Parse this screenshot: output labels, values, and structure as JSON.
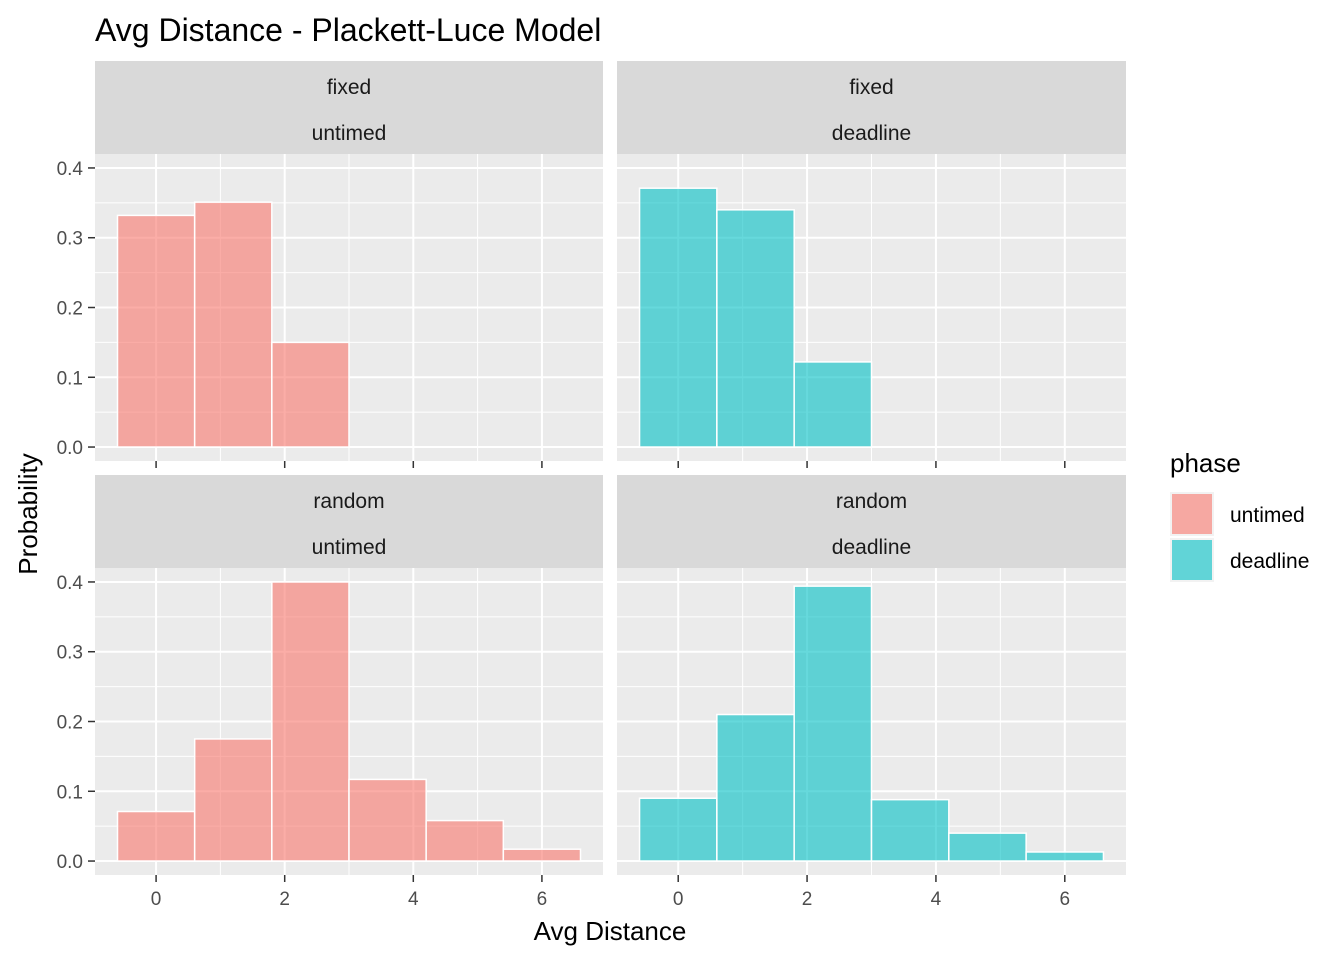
{
  "chart_data": {
    "type": "bar",
    "title": "Avg Distance - Plackett-Luce Model",
    "xlabel": "Avg Distance",
    "ylabel": "Probability",
    "xlim": [
      -0.95,
      6.95
    ],
    "ylim": [
      -0.02,
      0.42
    ],
    "x_ticks": [
      0,
      2,
      4,
      6
    ],
    "y_ticks": [
      0.0,
      0.1,
      0.2,
      0.3,
      0.4
    ],
    "y_tick_labels": [
      "0.0",
      "0.1",
      "0.2",
      "0.3",
      "0.4"
    ],
    "bin_edges": [
      -0.6,
      0.6,
      1.8,
      3.0,
      4.2,
      5.4,
      6.6
    ],
    "bin_centers": [
      0,
      1.2,
      2.4,
      3.6,
      4.8,
      6.0
    ],
    "grid": true,
    "legend": {
      "title": "phase",
      "position": "right",
      "entries": [
        {
          "label": "untimed",
          "color": "#F8766D"
        },
        {
          "label": "deadline",
          "color": "#00BFC4"
        }
      ]
    },
    "panels": [
      {
        "row": 0,
        "col": 0,
        "strip": [
          "fixed",
          "untimed"
        ],
        "phase": "untimed",
        "values": [
          0.332,
          0.351,
          0.15,
          0,
          0,
          0
        ]
      },
      {
        "row": 0,
        "col": 1,
        "strip": [
          "fixed",
          "deadline"
        ],
        "phase": "deadline",
        "values": [
          0.371,
          0.34,
          0.122,
          0,
          0,
          0
        ]
      },
      {
        "row": 1,
        "col": 0,
        "strip": [
          "random",
          "untimed"
        ],
        "phase": "untimed",
        "values": [
          0.071,
          0.175,
          0.4,
          0.117,
          0.058,
          0.017
        ]
      },
      {
        "row": 1,
        "col": 1,
        "strip": [
          "random",
          "deadline"
        ],
        "phase": "deadline",
        "values": [
          0.09,
          0.21,
          0.394,
          0.088,
          0.04,
          0.013
        ]
      }
    ]
  }
}
